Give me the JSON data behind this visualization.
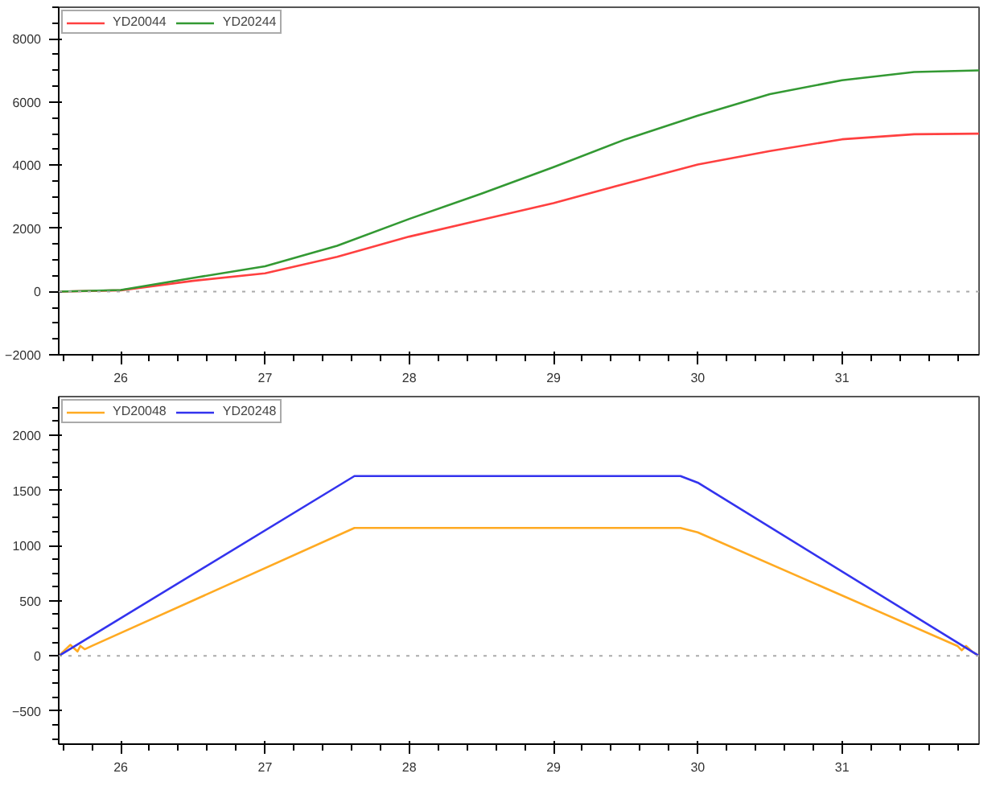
{
  "chart_data": [
    {
      "type": "line",
      "legend": "top left",
      "xlim": [
        25.57,
        31.95
      ],
      "ylim": [
        -2000,
        9000
      ],
      "xticks": [
        26,
        27,
        28,
        29,
        30,
        31
      ],
      "yticks": [
        -2000,
        0,
        2000,
        4000,
        6000,
        8000
      ],
      "ref_lines": [
        {
          "axis": "y",
          "value": 0,
          "color": "#aaaaaa",
          "line_style": "dotted"
        }
      ],
      "series": [
        {
          "name": "YD20044",
          "color": "#ff4040",
          "x": [
            25.57,
            26,
            26.5,
            27,
            27.5,
            28,
            28.5,
            29,
            29.5,
            30,
            30.5,
            31,
            31.5,
            31.95
          ],
          "values": [
            0,
            40,
            340,
            580,
            1100,
            1740,
            2270,
            2800,
            3420,
            4020,
            4450,
            4820,
            4980,
            5000
          ]
        },
        {
          "name": "YD20244",
          "color": "#339933",
          "x": [
            25.57,
            26,
            26.5,
            27,
            27.5,
            28,
            28.5,
            29,
            29.5,
            30,
            30.5,
            31,
            31.5,
            31.95
          ],
          "values": [
            0,
            50,
            430,
            800,
            1450,
            2300,
            3100,
            3940,
            4820,
            5570,
            6250,
            6690,
            6950,
            7000
          ]
        }
      ]
    },
    {
      "type": "line",
      "legend": "top left",
      "xlim": [
        25.57,
        31.95
      ],
      "ylim": [
        -800,
        2350
      ],
      "xticks": [
        26,
        27,
        28,
        29,
        30,
        31
      ],
      "yticks": [
        -500,
        0,
        500,
        1000,
        1500,
        2000
      ],
      "ref_lines": [
        {
          "axis": "y",
          "value": 0,
          "color": "#aaaaaa",
          "line_style": "dotted"
        }
      ],
      "series": [
        {
          "name": "YD20048",
          "color": "#ffaa22",
          "x": [
            25.57,
            25.65,
            25.7,
            25.72,
            25.75,
            25.8,
            27.62,
            29.88,
            30,
            31.8,
            31.83,
            31.86,
            31.9,
            31.95
          ],
          "values": [
            0,
            100,
            40,
            90,
            60,
            90,
            1160,
            1160,
            1120,
            90,
            50,
            90,
            40,
            0
          ]
        },
        {
          "name": "YD20248",
          "color": "#3333ee",
          "x": [
            25.57,
            27.62,
            29.88,
            30,
            31.95
          ],
          "values": [
            0,
            1630,
            1630,
            1570,
            0
          ]
        }
      ]
    }
  ]
}
